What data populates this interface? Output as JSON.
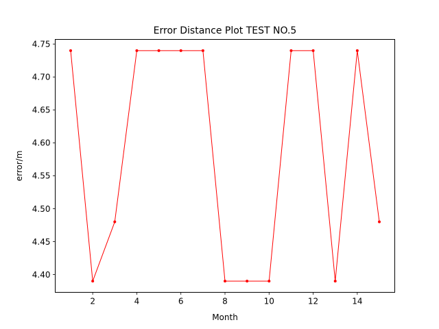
{
  "chart_data": {
    "type": "line",
    "title": "Error Distance Plot TEST NO.5",
    "xlabel": "Month",
    "ylabel": "error/m",
    "xlim": [
      0.3,
      15.7
    ],
    "ylim": [
      4.373,
      4.757
    ],
    "xticks": [
      2,
      4,
      6,
      8,
      10,
      12,
      14
    ],
    "xtick_labels": [
      "2",
      "4",
      "6",
      "8",
      "10",
      "12",
      "14"
    ],
    "yticks": [
      4.4,
      4.45,
      4.5,
      4.55,
      4.6,
      4.65,
      4.7,
      4.75
    ],
    "ytick_labels": [
      "4.40",
      "4.45",
      "4.50",
      "4.55",
      "4.60",
      "4.65",
      "4.70",
      "4.75"
    ],
    "grid": false,
    "series": [
      {
        "color": "#ff0000",
        "x": [
          1,
          2,
          3,
          4,
          5,
          6,
          7,
          8,
          9,
          10,
          11,
          12,
          13,
          14,
          15
        ],
        "y": [
          4.74,
          4.39,
          4.48,
          4.74,
          4.74,
          4.74,
          4.74,
          4.39,
          4.39,
          4.39,
          4.74,
          4.74,
          4.39,
          4.74,
          4.48
        ]
      }
    ]
  }
}
